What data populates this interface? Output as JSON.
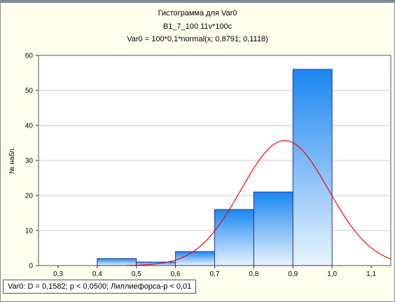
{
  "chart_data": {
    "type": "bar",
    "title": "Гистограмма для Var0",
    "subtitle": "B1_7_100 11v*100c",
    "formula": "Var0 = 100*0,1*normal(x; 0,8791; 0,1118)",
    "xlabel": "",
    "ylabel": "№ набл.",
    "xlim": [
      0.25,
      1.15
    ],
    "ylim": [
      0,
      60
    ],
    "xticks": [
      "0,3",
      "0,4",
      "0,5",
      "0,6",
      "0,7",
      "0,8",
      "0,9",
      "1,0",
      "1,1"
    ],
    "yticks": [
      "0",
      "10",
      "20",
      "30",
      "40",
      "50",
      "60"
    ],
    "bins": [
      {
        "from": 0.4,
        "to": 0.5,
        "value": 2
      },
      {
        "from": 0.5,
        "to": 0.6,
        "value": 1
      },
      {
        "from": 0.6,
        "to": 0.7,
        "value": 4
      },
      {
        "from": 0.7,
        "to": 0.8,
        "value": 16
      },
      {
        "from": 0.8,
        "to": 0.9,
        "value": 21
      },
      {
        "from": 0.9,
        "to": 1.0,
        "value": 56
      }
    ],
    "normal_fit": {
      "n": 100,
      "bin_width": 0.1,
      "mean": 0.8791,
      "sd": 0.1118
    },
    "colors": {
      "bar_top": "#1a86f0",
      "bar_bottom": "#eaf4ff",
      "bar_border": "#1a3a9a",
      "curve": "#ff0000",
      "grid": "#c8c8c8"
    },
    "grid": true,
    "legend": "none"
  },
  "footer": {
    "text": "Var0:   D = 0,1582; p < 0,0500; Лиллиефорса-p < 0,01"
  }
}
